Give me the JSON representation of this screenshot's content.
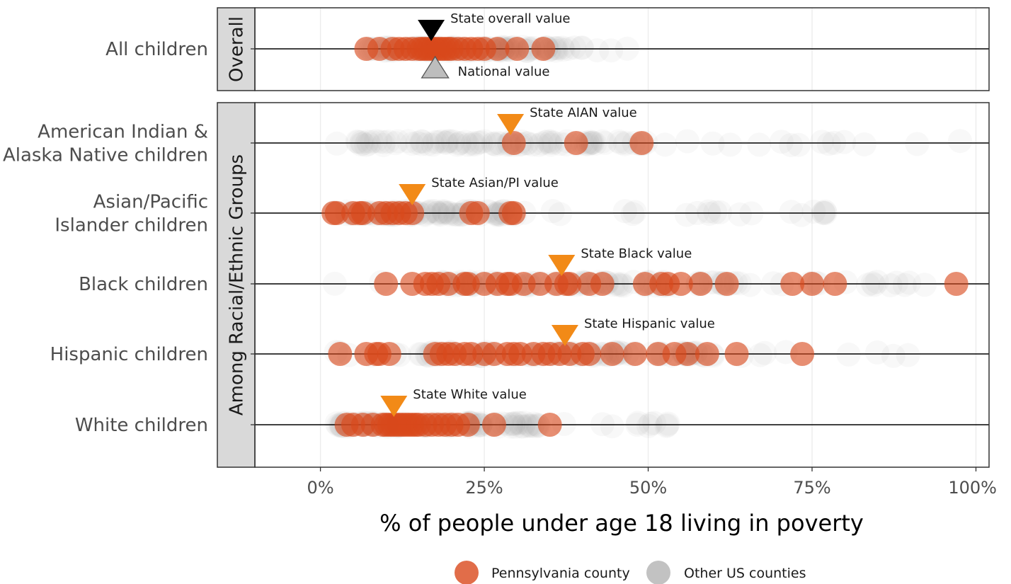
{
  "chart_data": {
    "type": "scatter",
    "xlabel": "% of people under age 18 living in poverty",
    "xlim": [
      -10,
      102
    ],
    "xticks": [
      0,
      25,
      50,
      75,
      100
    ],
    "xtick_labels": [
      "0%",
      "25%",
      "50%",
      "75%",
      "100%"
    ],
    "grid": true,
    "legend_position": "bottom",
    "colors": {
      "pennsylvania": "#D9481C",
      "other": "#9A9A9A",
      "state_overall_marker": "#000000",
      "national_marker": "#BDBDBD",
      "group_state_marker": "#F28A17",
      "panel_border": "#333333",
      "strip_fill": "#D9D9D9",
      "grid": "#EBEBEB"
    },
    "legend": [
      {
        "label": "Pennsylvania county",
        "color": "#D9481C"
      },
      {
        "label": "Other US counties",
        "color": "#9A9A9A"
      }
    ],
    "panels": [
      {
        "strip_label": "Overall",
        "rows": [
          {
            "label_lines": [
              "All children"
            ],
            "pennsylvania": [
              7,
              9,
              11,
              12,
              13,
              14,
              15,
              15.5,
              16,
              16.5,
              17,
              17.5,
              18,
              18.5,
              19,
              19.5,
              20,
              21,
              22,
              23,
              24,
              25,
              27,
              30,
              34
            ],
            "other_range": [
              3,
              48
            ],
            "other_dense": [
              7,
              38
            ],
            "markers": [
              {
                "label": "State overall value",
                "value": 16.9,
                "shape": "down-triangle",
                "color": "#000000",
                "position": "above"
              },
              {
                "label": "National value",
                "value": 17.5,
                "shape": "up-triangle",
                "color": "#BDBDBD",
                "position": "below"
              }
            ]
          }
        ]
      },
      {
        "strip_label": "Among Racial/Ethnic Groups",
        "rows": [
          {
            "label_lines": [
              "American Indian &",
              "Alaska Native children"
            ],
            "pennsylvania": [
              29.5,
              39,
              49
            ],
            "other_range": [
              0,
              100
            ],
            "other_dense": [
              5,
              50
            ],
            "markers": [
              {
                "label": "State AIAN value",
                "value": 29,
                "shape": "down-triangle",
                "color": "#F28A17",
                "position": "above"
              }
            ]
          },
          {
            "label_lines": [
              "Asian/Pacific",
              "Islander children"
            ],
            "pennsylvania": [
              2,
              2.5,
              5,
              6,
              6.5,
              9,
              10,
              11,
              12,
              13,
              14,
              23,
              24,
              29,
              29.5
            ],
            "other_range": [
              0,
              80
            ],
            "other_dense": [
              2,
              30
            ],
            "markers": [
              {
                "label": "State Asian/PI value",
                "value": 14,
                "shape": "down-triangle",
                "color": "#F28A17",
                "position": "above"
              }
            ]
          },
          {
            "label_lines": [
              "Black children"
            ],
            "pennsylvania": [
              10,
              14,
              16,
              17,
              18,
              19.5,
              22,
              22.5,
              25,
              27,
              28.5,
              29,
              31,
              33.5,
              36,
              37.5,
              38,
              41,
              43,
              49.5,
              52,
              53,
              55,
              58,
              62,
              72,
              75,
              78.5,
              97
            ],
            "other_range": [
              2,
              95
            ],
            "other_dense": [
              18,
              65
            ],
            "markers": [
              {
                "label": "State Black value",
                "value": 36.8,
                "shape": "down-triangle",
                "color": "#F28A17",
                "position": "above"
              }
            ]
          },
          {
            "label_lines": [
              "Hispanic children"
            ],
            "pennsylvania": [
              3,
              7,
              8.5,
              9,
              10.5,
              17.5,
              18.5,
              19.5,
              20.5,
              22,
              23,
              25,
              26.5,
              28.5,
              29.5,
              30.5,
              32.5,
              34,
              35,
              36.5,
              38,
              40,
              41,
              44.5,
              48,
              51.5,
              54,
              56,
              59,
              63.5,
              73.5
            ],
            "other_range": [
              1,
              90
            ],
            "other_dense": [
              15,
              60
            ],
            "markers": [
              {
                "label": "State Hispanic value",
                "value": 37.3,
                "shape": "down-triangle",
                "color": "#F28A17",
                "position": "above"
              }
            ]
          },
          {
            "label_lines": [
              "White children"
            ],
            "pennsylvania": [
              4,
              5,
              6.5,
              8,
              9.5,
              10,
              10.5,
              11,
              11.5,
              12,
              12.5,
              13,
              13.5,
              14,
              14.5,
              15,
              16,
              17,
              18,
              19,
              20,
              21,
              22.5,
              26.5,
              35
            ],
            "other_range": [
              0,
              55
            ],
            "other_dense": [
              2,
              35
            ],
            "markers": [
              {
                "label": "State White value",
                "value": 11.2,
                "shape": "down-triangle",
                "color": "#F28A17",
                "position": "above"
              }
            ]
          }
        ]
      }
    ]
  }
}
